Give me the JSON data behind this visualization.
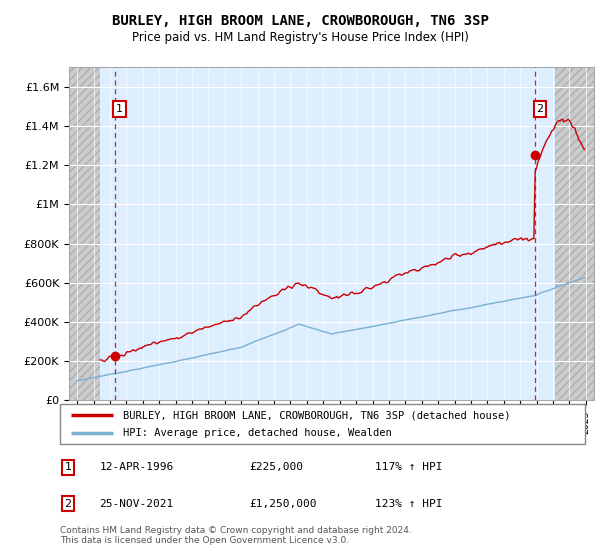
{
  "title": "BURLEY, HIGH BROOM LANE, CROWBOROUGH, TN6 3SP",
  "subtitle": "Price paid vs. HM Land Registry's House Price Index (HPI)",
  "legend_line1": "BURLEY, HIGH BROOM LANE, CROWBOROUGH, TN6 3SP (detached house)",
  "legend_line2": "HPI: Average price, detached house, Wealden",
  "annotation1_label": "1",
  "annotation1_date": "12-APR-1996",
  "annotation1_price": "£225,000",
  "annotation1_hpi": "117% ↑ HPI",
  "annotation2_label": "2",
  "annotation2_date": "25-NOV-2021",
  "annotation2_price": "£1,250,000",
  "annotation2_hpi": "123% ↑ HPI",
  "footnote_line1": "Contains HM Land Registry data © Crown copyright and database right 2024.",
  "footnote_line2": "This data is licensed under the Open Government Licence v3.0.",
  "sale1_x": 1996.28,
  "sale1_y": 225000,
  "sale2_x": 2021.9,
  "sale2_y": 1250000,
  "red_color": "#cc0000",
  "blue_color": "#7ab0d4",
  "bg_color": "#ddeeff",
  "xlim": [
    1993.5,
    2025.5
  ],
  "ylim": [
    0,
    1700000
  ],
  "data_start": 1994.0,
  "data_end": 2024.5,
  "hatch_left_end": 1995.4,
  "hatch_right_start": 2023.1,
  "yticks": [
    0,
    200000,
    400000,
    600000,
    800000,
    1000000,
    1200000,
    1400000,
    1600000
  ],
  "ytick_labels": [
    "£0",
    "£200K",
    "£400K",
    "£600K",
    "£800K",
    "£1M",
    "£1.2M",
    "£1.4M",
    "£1.6M"
  ]
}
